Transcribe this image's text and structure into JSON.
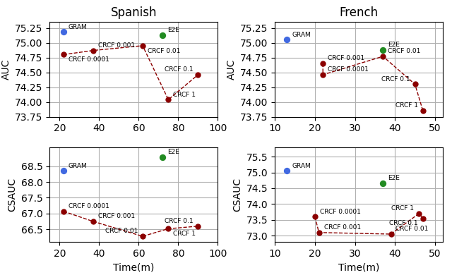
{
  "chart_data": [
    {
      "type": "line",
      "title": "Spanish",
      "ylabel": "AUC",
      "xlim": [
        15,
        100
      ],
      "xticks": [
        20,
        40,
        60,
        80,
        100
      ],
      "ylim": [
        73.75,
        75.35
      ],
      "yticks": [
        73.75,
        {
          "value": 74.0,
          "label": "74.00"
        },
        74.25,
        {
          "value": 74.5,
          "label": "74.50"
        },
        74.75,
        {
          "value": 75.0,
          "label": "75.00"
        },
        75.25
      ],
      "grid": true,
      "series": [
        {
          "type": "line",
          "line_style": "dashed",
          "marker": "o",
          "color": "#8B0000",
          "x": [
            22,
            37,
            62,
            75,
            90
          ],
          "values": [
            74.8,
            74.87,
            74.95,
            74.04,
            74.46
          ],
          "labels": [
            "CRCF 0.0001",
            "CRCF 0.001",
            "CRCF 0.01",
            "CRCF 1",
            "CRCF 0.1"
          ]
        },
        {
          "type": "scatter",
          "marker": "o",
          "color": "#4169E1",
          "x": [
            22
          ],
          "values": [
            75.18
          ],
          "labels": [
            "GRAM"
          ]
        },
        {
          "type": "scatter",
          "marker": "o",
          "color": "#228B22",
          "x": [
            72
          ],
          "values": [
            75.13
          ],
          "labels": [
            "E2E"
          ]
        }
      ]
    },
    {
      "type": "line",
      "title": "French",
      "ylabel": "AUC",
      "xlim": [
        10,
        52
      ],
      "xticks": [
        10,
        20,
        30,
        40,
        50
      ],
      "ylim": [
        73.75,
        75.35
      ],
      "yticks": [
        73.75,
        {
          "value": 74.0,
          "label": "74.00"
        },
        74.25,
        {
          "value": 74.5,
          "label": "74.50"
        },
        74.75,
        {
          "value": 75.0,
          "label": "75.00"
        },
        75.25
      ],
      "grid": true,
      "series": [
        {
          "type": "line",
          "line_style": "dashed",
          "marker": "o",
          "color": "#8B0000",
          "x": [
            22,
            22,
            37,
            45,
            47
          ],
          "values": [
            74.65,
            74.46,
            74.77,
            74.3,
            73.85
          ],
          "labels": [
            "CRCF 0.001",
            "CRCF 0.0001",
            "CRCF 0.01",
            "CRCF 0.1",
            "CRCF 1"
          ]
        },
        {
          "type": "scatter",
          "marker": "o",
          "color": "#4169E1",
          "x": [
            13
          ],
          "values": [
            75.05
          ],
          "labels": [
            "GRAM"
          ]
        },
        {
          "type": "scatter",
          "marker": "o",
          "color": "#228B22",
          "x": [
            37
          ],
          "values": [
            74.88
          ],
          "labels": [
            "E2E"
          ]
        }
      ]
    },
    {
      "type": "line",
      "ylabel": "CSAUC",
      "xlabel": "Time(m)",
      "xlim": [
        15,
        100
      ],
      "xticks": [
        20,
        40,
        60,
        80,
        100
      ],
      "ylim": [
        66.1,
        69.1
      ],
      "yticks": [
        66.5,
        67.0,
        67.5,
        68.0,
        68.5
      ],
      "grid": true,
      "series": [
        {
          "type": "line",
          "line_style": "dashed",
          "marker": "o",
          "color": "#8B0000",
          "x": [
            22,
            37,
            62,
            75,
            90
          ],
          "values": [
            67.07,
            66.75,
            66.28,
            66.52,
            66.6
          ],
          "labels": [
            "CRCF 0.0001",
            "CRCF 0.001",
            "CRCF 0.01",
            "CRCF 1",
            "CRCF 0.1"
          ]
        },
        {
          "type": "scatter",
          "marker": "o",
          "color": "#4169E1",
          "x": [
            22
          ],
          "values": [
            68.35
          ],
          "labels": [
            "GRAM"
          ]
        },
        {
          "type": "scatter",
          "marker": "o",
          "color": "#228B22",
          "x": [
            72
          ],
          "values": [
            68.78
          ],
          "labels": [
            "E2E"
          ]
        }
      ]
    },
    {
      "type": "line",
      "ylabel": "CSAUC",
      "xlabel": "Time(m)",
      "xlim": [
        10,
        52
      ],
      "xticks": [
        10,
        20,
        30,
        40,
        50
      ],
      "ylim": [
        72.8,
        75.8
      ],
      "yticks": [
        73.0,
        73.5,
        74.0,
        74.5,
        75.0,
        75.5
      ],
      "grid": true,
      "series": [
        {
          "type": "line",
          "line_style": "dashed",
          "marker": "o",
          "color": "#8B0000",
          "x": [
            20,
            21,
            39,
            46,
            47
          ],
          "values": [
            73.6,
            73.1,
            73.05,
            73.7,
            73.55
          ],
          "labels": [
            "CRCF 0.0001",
            "CRCF 0.001",
            "CRCF 0.01",
            "CRCF 1",
            "CRCF 0.1"
          ]
        },
        {
          "type": "scatter",
          "marker": "o",
          "color": "#4169E1",
          "x": [
            13
          ],
          "values": [
            75.05
          ],
          "labels": [
            "GRAM"
          ]
        },
        {
          "type": "scatter",
          "marker": "o",
          "color": "#228B22",
          "x": [
            37
          ],
          "values": [
            74.65
          ],
          "labels": [
            "E2E"
          ]
        }
      ]
    }
  ]
}
